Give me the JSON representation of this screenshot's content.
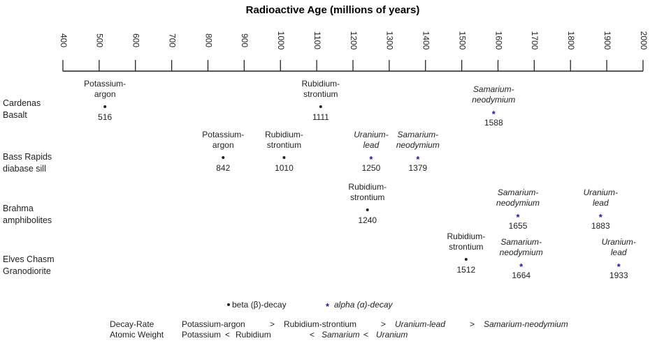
{
  "chart_data": {
    "type": "scatter",
    "title": "Radioactive Age (millions of years)",
    "xlim": [
      400,
      2000
    ],
    "ticks": [
      "400",
      "500",
      "600",
      "700",
      "800",
      "900",
      "1000",
      "1100",
      "1200",
      "1300",
      "1400",
      "1500",
      "1600",
      "1700",
      "1800",
      "1900",
      "2000"
    ],
    "rows": [
      {
        "label": [
          "Cardenas",
          "Basalt"
        ],
        "points": [
          {
            "method": [
              "Potassium-",
              "argon"
            ],
            "age": 516,
            "decay": "beta"
          },
          {
            "method": [
              "Rubidium-",
              "strontium"
            ],
            "age": 1111,
            "decay": "beta"
          },
          {
            "method": [
              "Samarium-",
              "neodymium"
            ],
            "age": 1588,
            "decay": "alpha"
          }
        ]
      },
      {
        "label": [
          "Bass Rapids",
          "diabase sill"
        ],
        "points": [
          {
            "method": [
              "Potassium-",
              "argon"
            ],
            "age": 842,
            "decay": "beta"
          },
          {
            "method": [
              "Rubidium-",
              "strontium"
            ],
            "age": 1010,
            "decay": "beta"
          },
          {
            "method": [
              "Uranium-",
              "lead"
            ],
            "age": 1250,
            "decay": "alpha"
          },
          {
            "method": [
              "Samarium-",
              "neodymium"
            ],
            "age": 1379,
            "decay": "alpha"
          }
        ]
      },
      {
        "label": [
          "Brahma",
          "amphibolites"
        ],
        "points": [
          {
            "method": [
              "Rubidium-",
              "strontium"
            ],
            "age": 1240,
            "decay": "beta"
          },
          {
            "method": [
              "Samarium-",
              "neodymium"
            ],
            "age": 1655,
            "decay": "alpha"
          },
          {
            "method": [
              "Uranium-",
              "lead"
            ],
            "age": 1883,
            "decay": "alpha"
          }
        ]
      },
      {
        "label": [
          "Elves Chasm",
          "Granodiorite"
        ],
        "points": [
          {
            "method": [
              "Rubidium-",
              "strontium"
            ],
            "age": 1512,
            "decay": "beta"
          },
          {
            "method": [
              "Samarium-",
              "neodymium"
            ],
            "age": 1664,
            "decay": "alpha"
          },
          {
            "method": [
              "Uranium-",
              "lead"
            ],
            "age": 1933,
            "decay": "alpha"
          }
        ]
      }
    ],
    "legend": {
      "beta_symbol": "•",
      "beta_label": "beta (β)-decay",
      "alpha_symbol": "*",
      "alpha_label": "alpha (α)-decay"
    },
    "footer": {
      "decay_label": "Decay-Rate",
      "decay_parts": [
        "Potassium-argon",
        ">",
        "Rubidium-strontium",
        ">",
        "Uranium-lead",
        ">",
        "Samarium-neodymium"
      ],
      "weight_label": "Atomic Weight",
      "weight_parts": [
        "Potassium",
        "<",
        "Rubidium",
        "<",
        "Samarium",
        "<",
        "Uranium"
      ]
    },
    "colors": {
      "alpha": "#1a1aa0",
      "text": "#222222",
      "axis": "#222222"
    }
  }
}
